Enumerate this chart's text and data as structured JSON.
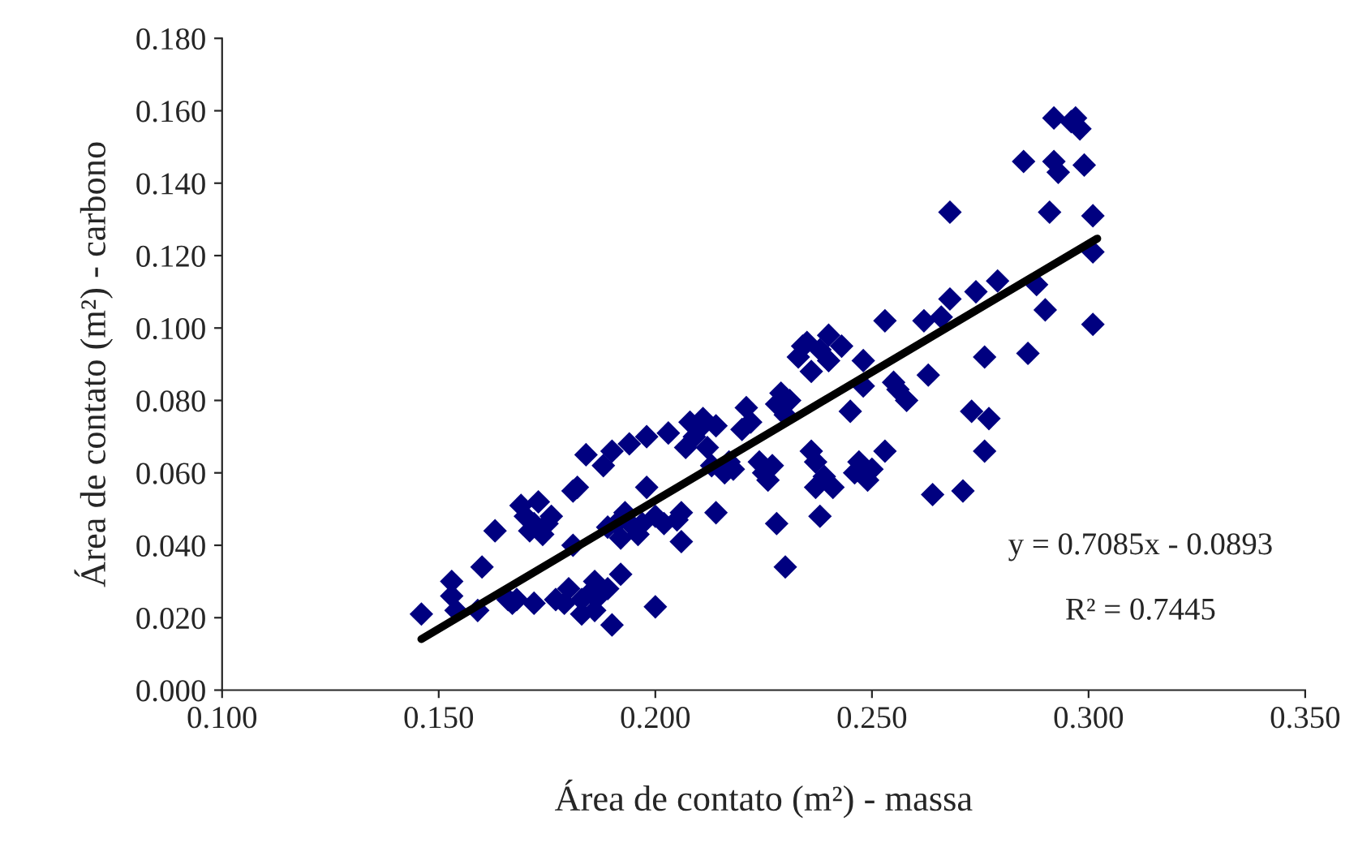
{
  "chart_data": {
    "type": "scatter",
    "xlabel": "Área de contato (m²) - massa",
    "ylabel": "Área de contato (m²) - carbono",
    "xlim": [
      0.1,
      0.35
    ],
    "xticks": [
      {
        "value": 0.1,
        "label": "0.100"
      },
      {
        "value": 0.15,
        "label": "0.150"
      },
      {
        "value": 0.2,
        "label": "0.200"
      },
      {
        "value": 0.25,
        "label": "0.250"
      },
      {
        "value": 0.3,
        "label": "0.300"
      },
      {
        "value": 0.35,
        "label": "0.350"
      }
    ],
    "ylim": [
      0,
      0.18
    ],
    "yticks": [
      {
        "value": 0,
        "label": "0.000"
      },
      {
        "value": 0.02,
        "label": "0.020"
      },
      {
        "value": 0.04,
        "label": "0.040"
      },
      {
        "value": 0.06,
        "label": "0.060"
      },
      {
        "value": 0.08,
        "label": "0.080"
      },
      {
        "value": 0.1,
        "label": "0.100"
      },
      {
        "value": 0.12,
        "label": "0.120"
      },
      {
        "value": 0.14,
        "label": "0.140"
      },
      {
        "value": 0.16,
        "label": "0.160"
      },
      {
        "value": 0.18,
        "label": "0.180"
      }
    ],
    "grid": false,
    "legend": false,
    "annotations": [
      "y = 0.7085x - 0.0893",
      "R² = 0.7445"
    ],
    "series": [
      {
        "color": "#000080",
        "marker": "diamond",
        "x": [
          0.146,
          0.153,
          0.153,
          0.154,
          0.159,
          0.16,
          0.163,
          0.166,
          0.167,
          0.168,
          0.169,
          0.17,
          0.171,
          0.172,
          0.172,
          0.173,
          0.174,
          0.175,
          0.176,
          0.177,
          0.179,
          0.18,
          0.181,
          0.181,
          0.182,
          0.183,
          0.183,
          0.184,
          0.185,
          0.186,
          0.186,
          0.187,
          0.188,
          0.189,
          0.189,
          0.19,
          0.19,
          0.191,
          0.192,
          0.192,
          0.193,
          0.194,
          0.195,
          0.196,
          0.197,
          0.198,
          0.198,
          0.2,
          0.2,
          0.202,
          0.203,
          0.205,
          0.206,
          0.206,
          0.207,
          0.208,
          0.209,
          0.21,
          0.211,
          0.212,
          0.213,
          0.214,
          0.214,
          0.216,
          0.217,
          0.218,
          0.22,
          0.221,
          0.222,
          0.224,
          0.225,
          0.226,
          0.227,
          0.228,
          0.228,
          0.229,
          0.23,
          0.23,
          0.231,
          0.233,
          0.234,
          0.235,
          0.236,
          0.236,
          0.237,
          0.237,
          0.238,
          0.238,
          0.239,
          0.24,
          0.24,
          0.241,
          0.243,
          0.245,
          0.246,
          0.247,
          0.248,
          0.248,
          0.249,
          0.25,
          0.253,
          0.253,
          0.255,
          0.256,
          0.258,
          0.262,
          0.263,
          0.264,
          0.266,
          0.268,
          0.268,
          0.271,
          0.273,
          0.274,
          0.276,
          0.276,
          0.277,
          0.279,
          0.285,
          0.286,
          0.288,
          0.29,
          0.291,
          0.292,
          0.292,
          0.293,
          0.296,
          0.297,
          0.298,
          0.299,
          0.301,
          0.301,
          0.301
        ],
        "values": [
          0.021,
          0.03,
          0.026,
          0.022,
          0.022,
          0.034,
          0.044,
          0.025,
          0.024,
          0.025,
          0.051,
          0.048,
          0.044,
          0.046,
          0.024,
          0.052,
          0.043,
          0.046,
          0.048,
          0.025,
          0.024,
          0.028,
          0.04,
          0.055,
          0.056,
          0.025,
          0.021,
          0.065,
          0.027,
          0.03,
          0.022,
          0.026,
          0.062,
          0.045,
          0.028,
          0.066,
          0.018,
          0.046,
          0.032,
          0.042,
          0.049,
          0.068,
          0.045,
          0.043,
          0.046,
          0.056,
          0.07,
          0.048,
          0.023,
          0.046,
          0.071,
          0.047,
          0.041,
          0.049,
          0.067,
          0.074,
          0.07,
          0.072,
          0.075,
          0.067,
          0.062,
          0.073,
          0.049,
          0.06,
          0.063,
          0.061,
          0.072,
          0.078,
          0.074,
          0.063,
          0.06,
          0.058,
          0.062,
          0.079,
          0.046,
          0.082,
          0.076,
          0.034,
          0.08,
          0.092,
          0.095,
          0.096,
          0.088,
          0.066,
          0.063,
          0.056,
          0.094,
          0.048,
          0.059,
          0.098,
          0.091,
          0.056,
          0.095,
          0.077,
          0.06,
          0.063,
          0.091,
          0.084,
          0.058,
          0.061,
          0.102,
          0.066,
          0.085,
          0.083,
          0.08,
          0.102,
          0.087,
          0.054,
          0.103,
          0.108,
          0.132,
          0.055,
          0.077,
          0.11,
          0.066,
          0.092,
          0.075,
          0.113,
          0.146,
          0.093,
          0.112,
          0.105,
          0.132,
          0.158,
          0.146,
          0.143,
          0.157,
          0.158,
          0.155,
          0.145,
          0.131,
          0.121,
          0.101
        ]
      },
      {
        "type": "line",
        "color": "#000000",
        "line_style": "solid",
        "x": [
          0.146,
          0.302
        ],
        "values": [
          0.0141,
          0.1247
        ]
      }
    ]
  }
}
